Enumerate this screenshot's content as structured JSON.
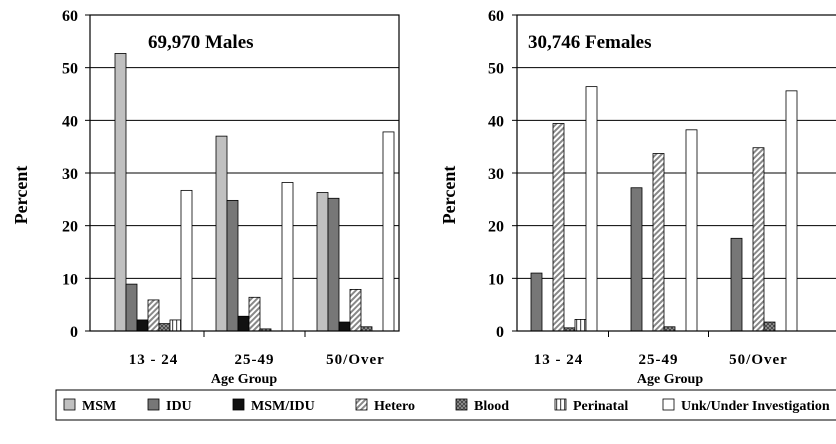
{
  "legend": [
    {
      "name": "MSM",
      "fill": "#c0c0c0",
      "pattern": "solid"
    },
    {
      "name": "IDU",
      "fill": "#777777",
      "pattern": "solid"
    },
    {
      "name": "MSM/IDU",
      "fill": "#111111",
      "pattern": "solid"
    },
    {
      "name": "Hetero",
      "fill": "#a0a0a0",
      "pattern": "diag-dense"
    },
    {
      "name": "Blood",
      "fill": "#808080",
      "pattern": "crosshatch"
    },
    {
      "name": "Perinatal",
      "fill": "#ffffff",
      "pattern": "vlines"
    },
    {
      "name": "Unk/Under Investigation",
      "fill": "#ffffff",
      "pattern": "solid"
    }
  ],
  "chart_data": [
    {
      "type": "bar",
      "title": "69,970 Males",
      "xlabel": "Age Group",
      "ylabel": "Percent",
      "ylim": [
        0,
        60
      ],
      "yticks": [
        "0",
        "10",
        "20",
        "30",
        "40",
        "50",
        "60"
      ],
      "categories": [
        "13 - 24",
        "25-49",
        "50/Over"
      ],
      "grid": true,
      "series": [
        {
          "name": "MSM",
          "values": [
            52.7,
            37.0,
            26.3
          ]
        },
        {
          "name": "IDU",
          "values": [
            8.9,
            24.8,
            25.2
          ]
        },
        {
          "name": "MSM/IDU",
          "values": [
            2.1,
            2.8,
            1.7
          ]
        },
        {
          "name": "Hetero",
          "values": [
            5.9,
            6.4,
            7.9
          ]
        },
        {
          "name": "Blood",
          "values": [
            1.4,
            0.4,
            0.8
          ]
        },
        {
          "name": "Perinatal",
          "values": [
            2.1,
            0,
            0
          ]
        },
        {
          "name": "Unk/Under Investigation",
          "values": [
            26.7,
            28.2,
            37.8
          ]
        }
      ]
    },
    {
      "type": "bar",
      "title": "30,746 Females",
      "xlabel": "Age Group",
      "ylabel": "Percent",
      "ylim": [
        0,
        60
      ],
      "yticks": [
        "0",
        "10",
        "20",
        "30",
        "40",
        "50",
        "60"
      ],
      "categories": [
        "13 - 24",
        "25-49",
        "50/Over"
      ],
      "grid": true,
      "series": [
        {
          "name": "MSM",
          "values": [
            0,
            0,
            0
          ]
        },
        {
          "name": "IDU",
          "values": [
            11.0,
            27.2,
            17.6
          ]
        },
        {
          "name": "MSM/IDU",
          "values": [
            0,
            0,
            0
          ]
        },
        {
          "name": "Hetero",
          "values": [
            39.4,
            33.7,
            34.8
          ]
        },
        {
          "name": "Blood",
          "values": [
            0.6,
            0.8,
            1.7
          ]
        },
        {
          "name": "Perinatal",
          "values": [
            2.2,
            0,
            0
          ]
        },
        {
          "name": "Unk/Under Investigation",
          "values": [
            46.4,
            38.2,
            45.6
          ]
        }
      ]
    }
  ]
}
